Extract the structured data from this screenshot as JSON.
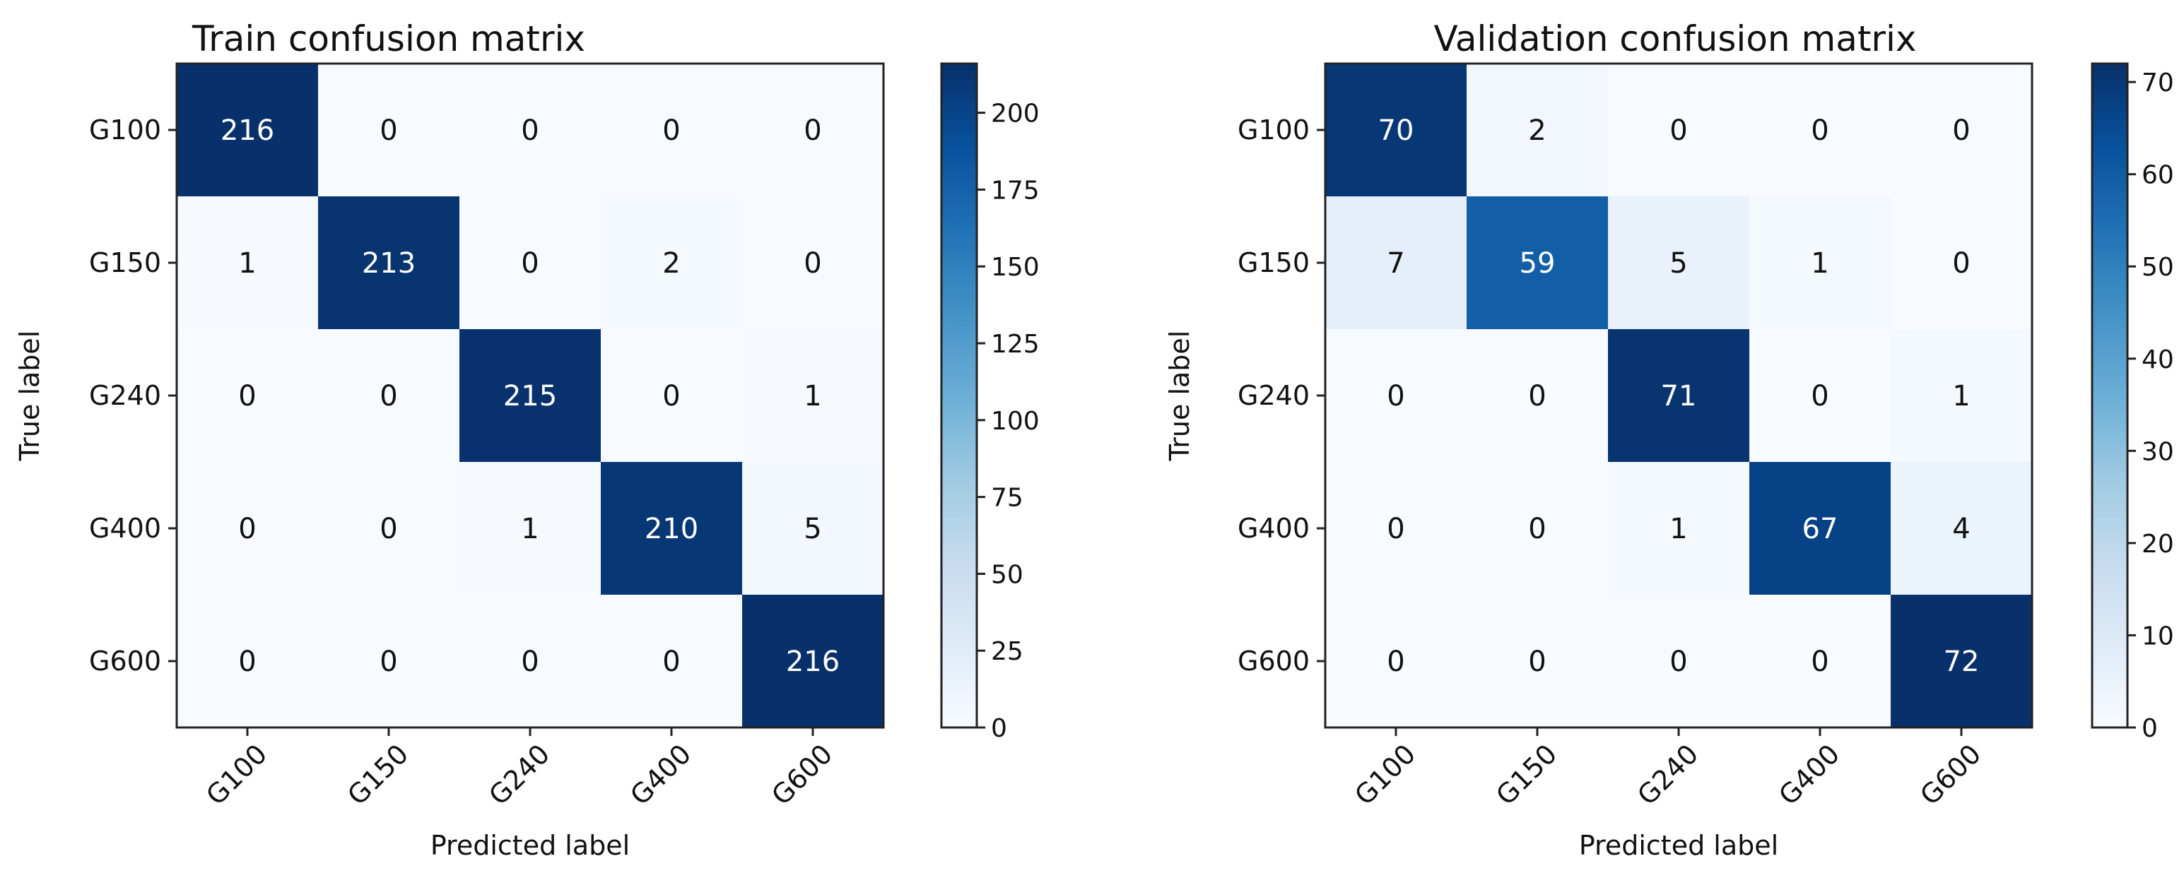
{
  "chart_data": [
    {
      "type": "heatmap",
      "title": "Train confusion matrix",
      "xlabel": "Predicted label",
      "ylabel": "True label",
      "x_categories": [
        "G100",
        "G150",
        "G240",
        "G400",
        "G600"
      ],
      "y_categories": [
        "G100",
        "G150",
        "G240",
        "G400",
        "G600"
      ],
      "values": [
        [
          216,
          0,
          0,
          0,
          0
        ],
        [
          1,
          213,
          0,
          2,
          0
        ],
        [
          0,
          0,
          215,
          0,
          1
        ],
        [
          0,
          0,
          1,
          210,
          5
        ],
        [
          0,
          0,
          0,
          0,
          216
        ]
      ],
      "colormap": "Blues",
      "colorbar": {
        "range": [
          0,
          216
        ],
        "ticks": [
          0,
          25,
          50,
          75,
          100,
          125,
          150,
          175,
          200
        ]
      }
    },
    {
      "type": "heatmap",
      "title": "Validation confusion matrix",
      "xlabel": "Predicted label",
      "ylabel": "True label",
      "x_categories": [
        "G100",
        "G150",
        "G240",
        "G400",
        "G600"
      ],
      "y_categories": [
        "G100",
        "G150",
        "G240",
        "G400",
        "G600"
      ],
      "values": [
        [
          70,
          2,
          0,
          0,
          0
        ],
        [
          7,
          59,
          5,
          1,
          0
        ],
        [
          0,
          0,
          71,
          0,
          1
        ],
        [
          0,
          0,
          1,
          67,
          4
        ],
        [
          0,
          0,
          0,
          0,
          72
        ]
      ],
      "colormap": "Blues",
      "colorbar": {
        "range": [
          0,
          72
        ],
        "ticks": [
          0,
          10,
          20,
          30,
          40,
          50,
          60,
          70
        ]
      }
    }
  ],
  "colors": {
    "blues_low": "#f7fbff",
    "blues_high": "#08306b",
    "text_dark": "#111111",
    "text_light": "#ffffff"
  }
}
